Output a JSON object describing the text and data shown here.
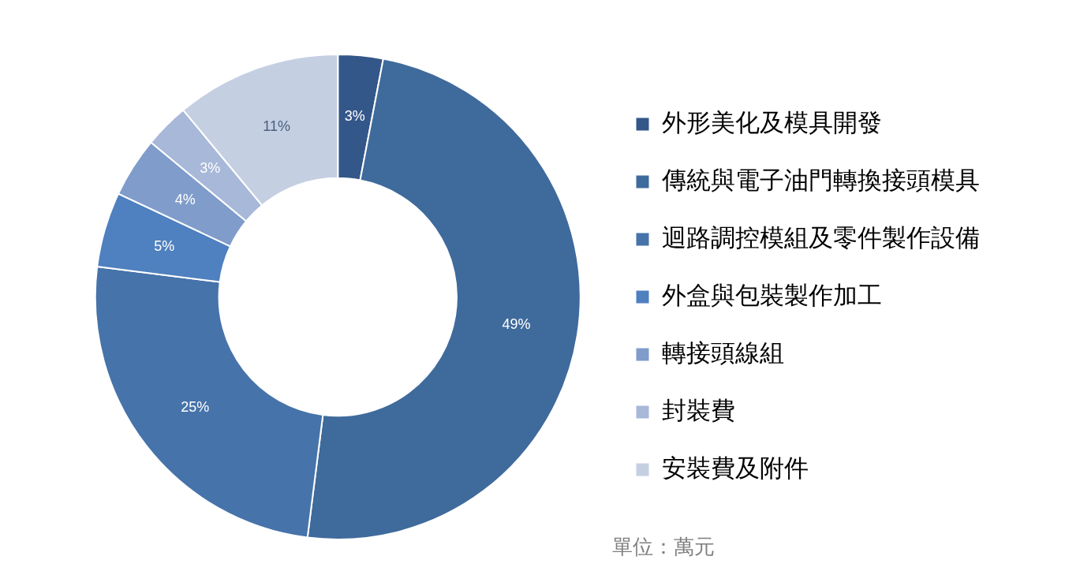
{
  "chart_data": {
    "type": "donut",
    "categories": [
      "外形美化及模具開發",
      "傳統與電子油門轉換接頭模具",
      "迴路調控模組及零件製作設備",
      "外盒與包裝製作加工",
      "轉接頭線組",
      "封裝費",
      "安裝費及附件"
    ],
    "values": [
      3,
      49,
      25,
      5,
      4,
      3,
      11
    ],
    "value_labels": [
      "3%",
      "49%",
      "25%",
      "5%",
      "4%",
      "3%",
      "11%"
    ],
    "colors": [
      "#34578a",
      "#3f6a9c",
      "#4673aa",
      "#4f80bf",
      "#7f9ccb",
      "#a8b8d8",
      "#c5cfe2"
    ],
    "legend": "right",
    "annotations": [
      "單位：萬元"
    ]
  }
}
